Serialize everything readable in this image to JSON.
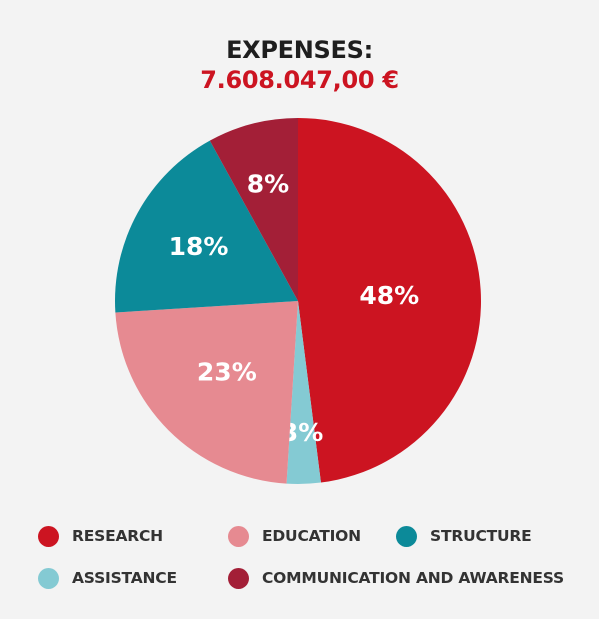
{
  "header": {
    "title": "EXPENSES:",
    "total": "7.608.047,00 €"
  },
  "chart_data": {
    "type": "pie",
    "start_angle_deg": 0,
    "direction": "clockwise",
    "slices": [
      {
        "name": "RESEARCH",
        "value": 48,
        "label": "48%",
        "color": "#cc1421"
      },
      {
        "name": "ASSISTANCE",
        "value": 3,
        "label": "3%",
        "color": "#84cad3"
      },
      {
        "name": "EDUCATION",
        "value": 23,
        "label": "23%",
        "color": "#e68a91"
      },
      {
        "name": "STRUCTURE",
        "value": 18,
        "label": "18%",
        "color": "#0c8a99"
      },
      {
        "name": "COMMUNICATION AND AWARENESS",
        "value": 8,
        "label": "8%",
        "color": "#a31f37"
      }
    ]
  },
  "legend": [
    {
      "label": "RESEARCH",
      "color": "#cc1421"
    },
    {
      "label": "EDUCATION",
      "color": "#e68a91"
    },
    {
      "label": "STRUCTURE",
      "color": "#0c8a99"
    },
    {
      "label": "ASSISTANCE",
      "color": "#84cad3"
    },
    {
      "label": "COMMUNICATION AND AWARENESS",
      "color": "#a31f37"
    }
  ]
}
